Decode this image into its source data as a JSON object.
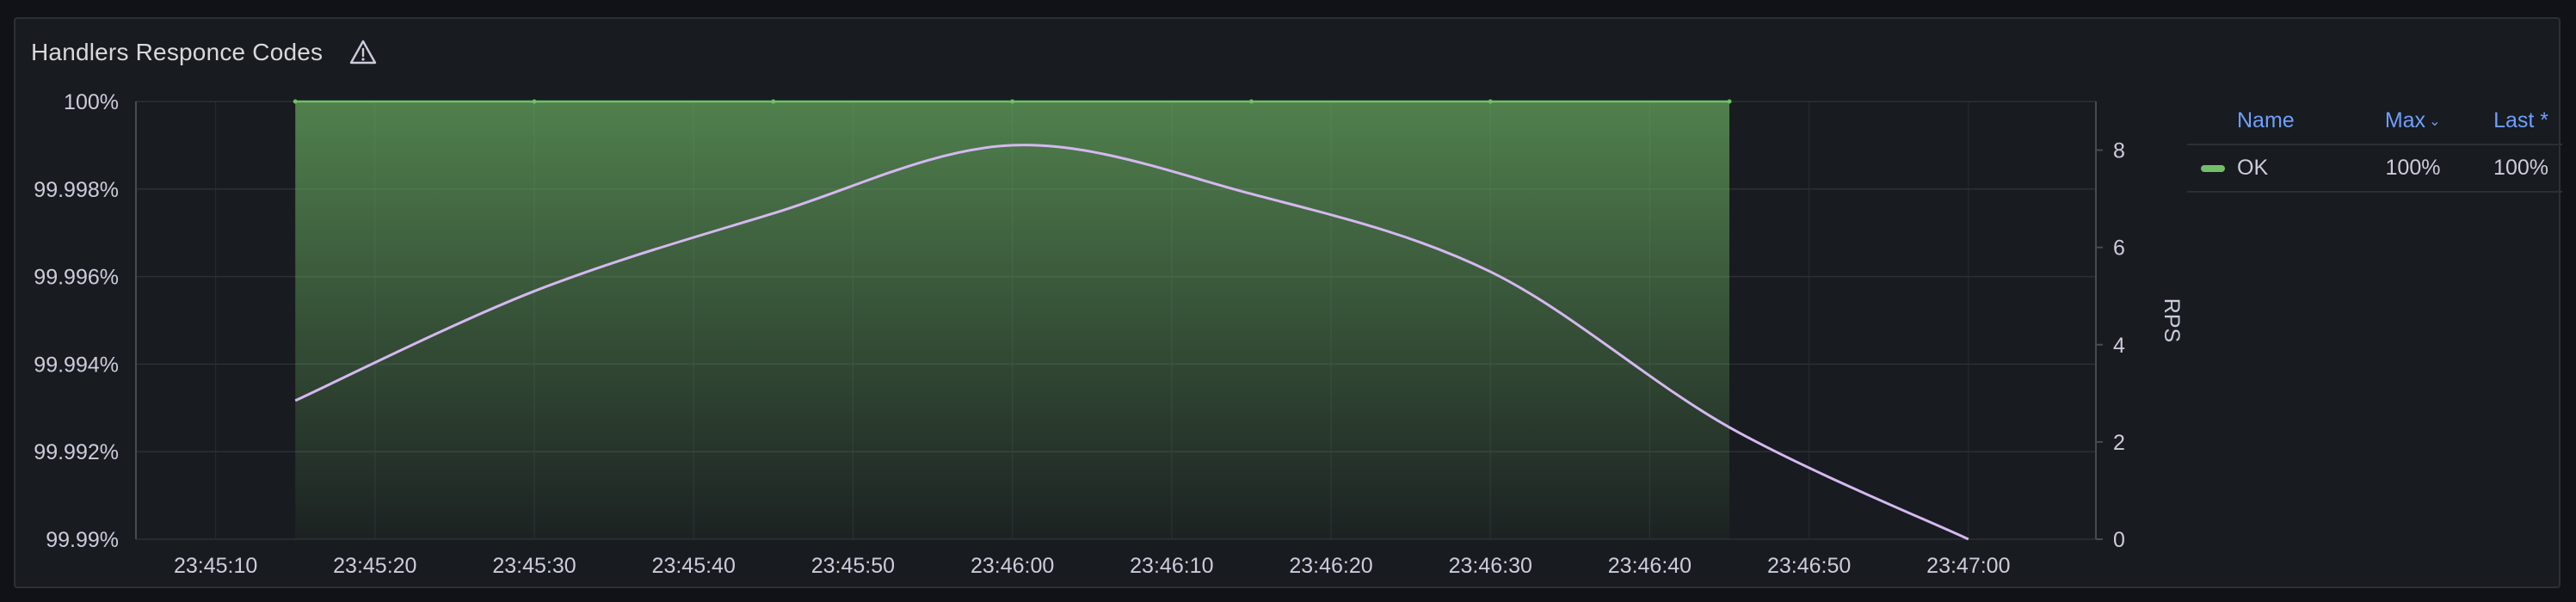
{
  "panel": {
    "title": "Handlers Responce Codes",
    "warning_icon": "warning-triangle-icon"
  },
  "colors": {
    "background": "#111217",
    "panel": "#181b1f",
    "grid": "#2c2f36",
    "ok_series": "#73bf69",
    "rps_series": "#d5b8f0",
    "text": "#ccccdc",
    "legend_header": "#6e9fff"
  },
  "legend": {
    "columns": {
      "name": "Name",
      "max": "Max",
      "last": "Last *"
    },
    "sort_icon": "chevron-down-icon",
    "rows": [
      {
        "name": "OK",
        "max": "100%",
        "last": "100%"
      }
    ]
  },
  "chart_data": {
    "type": "line",
    "title": "Handlers Responce Codes",
    "x_tick_labels": [
      "23:45:10",
      "23:45:20",
      "23:45:30",
      "23:45:40",
      "23:45:50",
      "23:46:00",
      "23:46:10",
      "23:46:20",
      "23:46:30",
      "23:46:40",
      "23:46:50",
      "23:47:00"
    ],
    "x_range": [
      "23:45:05",
      "23:47:08"
    ],
    "y_left": {
      "ticks": [
        "99.99%",
        "99.992%",
        "99.994%",
        "99.996%",
        "99.998%",
        "100%"
      ],
      "min": 99.99,
      "max": 100,
      "unit": "%"
    },
    "y_right": {
      "label": "RPS",
      "ticks": [
        "0",
        "2",
        "4",
        "6",
        "8"
      ],
      "min": 0,
      "max": 9
    },
    "grid": true,
    "legend_placement": "right",
    "series": [
      {
        "name": "OK",
        "axis": "left",
        "style": "area",
        "x": [
          "23:45:15",
          "23:45:30",
          "23:45:45",
          "23:46:00",
          "23:46:15",
          "23:46:30",
          "23:46:45"
        ],
        "values": [
          100,
          100,
          100,
          100,
          100,
          100,
          100
        ]
      },
      {
        "name": "",
        "axis": "right",
        "style": "line",
        "x": [
          "23:45:15",
          "23:45:30",
          "23:45:45",
          "23:46:00",
          "23:46:15",
          "23:46:30",
          "23:46:45",
          "23:47:00"
        ],
        "values": [
          2.85,
          5.1,
          6.7,
          8.1,
          7.1,
          5.5,
          2.3,
          0
        ]
      }
    ]
  }
}
